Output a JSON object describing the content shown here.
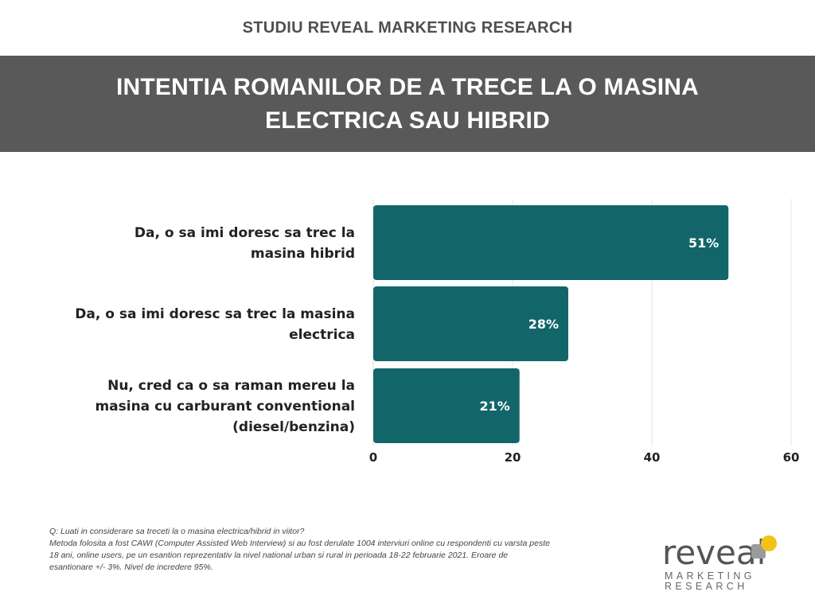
{
  "header": {
    "study_title": "STUDIU REVEAL MARKETING RESEARCH",
    "title": "INTENTIA ROMANILOR DE A TRECE LA O MASINA ELECTRICA SAU HIBRID"
  },
  "chart_data": {
    "type": "bar",
    "orientation": "horizontal",
    "categories": [
      "Da, o sa imi doresc sa trec la masina hibrid",
      "Da, o sa imi doresc sa trec la masina electrica",
      "Nu, cred ca o sa raman mereu la masina cu carburant conventional (diesel/benzina)"
    ],
    "category_lines": [
      [
        "Da, o sa imi doresc sa trec la",
        "masina hibrid"
      ],
      [
        "Da, o sa imi doresc sa trec la masina",
        "electrica"
      ],
      [
        "Nu, cred ca o sa raman mereu la",
        "masina cu carburant conventional",
        "(diesel/benzina)"
      ]
    ],
    "values": [
      51,
      28,
      21
    ],
    "data_labels": [
      "51%",
      "28%",
      "21%"
    ],
    "xlim": [
      0,
      60
    ],
    "xticks": [
      0,
      20,
      40,
      60
    ],
    "xtick_labels": [
      "0",
      "20",
      "40",
      "60"
    ],
    "grid": true,
    "bar_color": "#12666a",
    "title": "",
    "xlabel": "",
    "ylabel": ""
  },
  "footnote": {
    "question": "Q: Luati in considerare sa treceti la o masina electrica/hibrid in viitor?",
    "method": "Metoda folosita a fost CAWI (Computer Assisted Web Interview) si au fost derulate 1004 interviuri online cu respondenti cu varsta peste 18 ani, online users, pe un esantion reprezentativ la nivel national urban si rural in perioada 18-22 februarie 2021. Eroare de esantionare +/- 3%. Nivel de incredere 95%."
  },
  "logo": {
    "word": "reveal",
    "line1": "MARKETING",
    "line2": "RESEARCH",
    "accent_color": "#f2c21b"
  }
}
